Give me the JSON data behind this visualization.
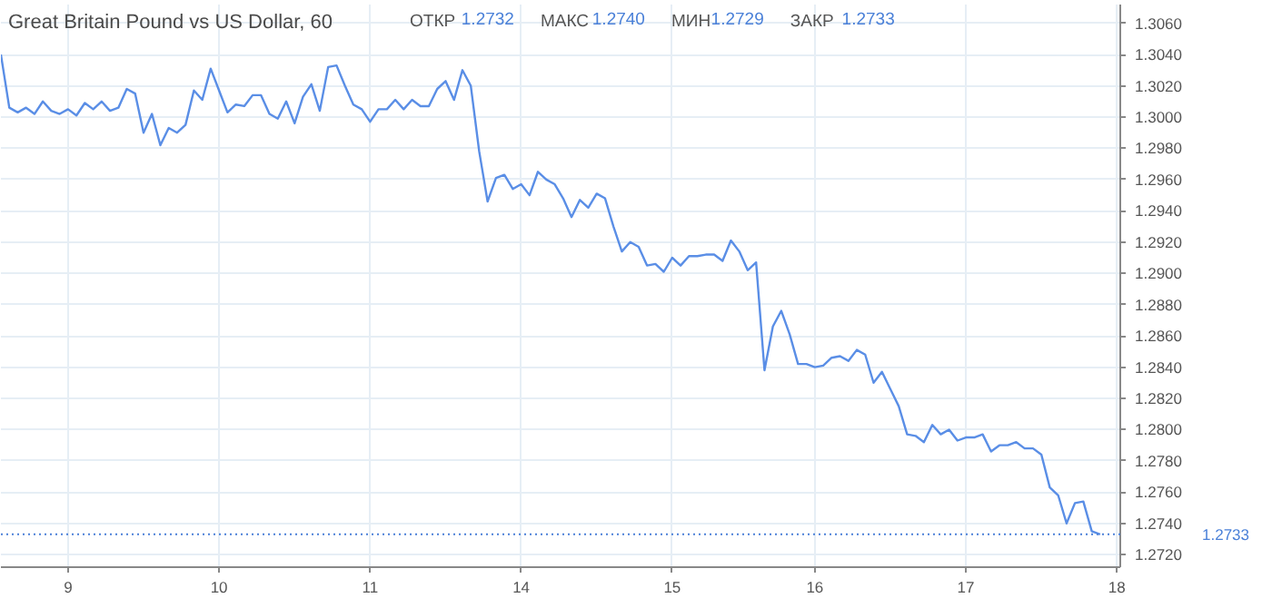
{
  "chart_data": {
    "type": "line",
    "title": "Great Britain Pound vs US Dollar, 60",
    "annotations": [
      "ОТКР",
      "1.2732",
      "МАКС",
      "1.2740",
      "МИН",
      "1.2729",
      "ЗАКР",
      "1.2733"
    ],
    "categories": [
      null,
      null,
      null,
      null,
      null,
      null,
      null,
      null,
      "9",
      null,
      null,
      null,
      null,
      null,
      null,
      null,
      null,
      null,
      null,
      null,
      null,
      null,
      null,
      null,
      null,
      null,
      "10",
      null,
      null,
      null,
      null,
      null,
      null,
      null,
      null,
      null,
      null,
      null,
      null,
      null,
      null,
      null,
      null,
      null,
      "11",
      null,
      null,
      null,
      null,
      null,
      null,
      null,
      null,
      null,
      null,
      null,
      null,
      null,
      null,
      null,
      null,
      null,
      "14",
      null,
      null,
      null,
      null,
      null,
      null,
      null,
      null,
      null,
      null,
      null,
      null,
      null,
      null,
      null,
      null,
      null,
      "15",
      null,
      null,
      null,
      null,
      null,
      null,
      null,
      null,
      null,
      null,
      null,
      null,
      null,
      null,
      null,
      null,
      "16",
      null,
      null,
      null,
      null,
      null,
      null,
      null,
      null,
      null,
      null,
      null,
      null,
      null,
      null,
      null,
      null,
      null,
      "17",
      null,
      null,
      null,
      null,
      null,
      null,
      null,
      null,
      null,
      null,
      null,
      null,
      null,
      null,
      null,
      null,
      null,
      "18"
    ],
    "series": [
      {
        "color": "#5a8ee6",
        "values": [
          1.304,
          1.3006,
          1.3003,
          1.3006,
          1.3002,
          1.301,
          1.3004,
          1.3002,
          1.3005,
          1.3001,
          1.3009,
          1.3005,
          1.301,
          1.3004,
          1.3006,
          1.3018,
          1.3015,
          1.299,
          1.3002,
          1.2982,
          1.2993,
          1.299,
          1.2995,
          1.3017,
          1.3011,
          1.3031,
          1.3017,
          1.3003,
          1.3008,
          1.3007,
          1.3014,
          1.3014,
          1.3002,
          1.2999,
          1.301,
          1.2996,
          1.3013,
          1.3021,
          1.3004,
          1.3032,
          1.3033,
          1.302,
          1.3008,
          1.3005,
          1.2997,
          1.3005,
          1.3005,
          1.3011,
          1.3005,
          1.3011,
          1.3007,
          1.3007,
          1.3018,
          1.3023,
          1.3011,
          1.303,
          1.302,
          1.2978,
          1.2946,
          1.2961,
          1.2963,
          1.2954,
          1.2957,
          1.295,
          1.2965,
          1.296,
          1.2957,
          1.2948,
          1.2936,
          1.2947,
          1.2942,
          1.2951,
          1.2948,
          1.293,
          1.2914,
          1.292,
          1.2917,
          1.2905,
          1.2906,
          1.2901,
          1.291,
          1.2905,
          1.2911,
          1.2911,
          1.2912,
          1.2912,
          1.2908,
          1.2921,
          1.2914,
          1.2902,
          1.2907,
          1.2838,
          1.2866,
          1.2876,
          1.2861,
          1.2842,
          1.2842,
          1.284,
          1.2841,
          1.2846,
          1.2847,
          1.2844,
          1.2851,
          1.2848,
          1.283,
          1.2837,
          1.2826,
          1.2815,
          1.2797,
          1.2796,
          1.2792,
          1.2803,
          1.2797,
          1.28,
          1.2793,
          1.2795,
          1.2795,
          1.2797,
          1.2786,
          1.279,
          1.279,
          1.2792,
          1.2788,
          1.2788,
          1.2784,
          1.2763,
          1.2758,
          1.274,
          1.2753,
          1.2754,
          1.2735,
          1.2733,
          null,
          null
        ]
      }
    ],
    "ylim": [
      1.2712,
      1.3072
    ],
    "yticks": [
      {
        "value": 1.272,
        "label": "1.2720"
      },
      {
        "value": 1.274,
        "label": "1.2740"
      },
      {
        "value": 1.276,
        "label": "1.2760"
      },
      {
        "value": 1.278,
        "label": "1.2780"
      },
      {
        "value": 1.28,
        "label": "1.2800"
      },
      {
        "value": 1.282,
        "label": "1.2820"
      },
      {
        "value": 1.284,
        "label": "1.2840"
      },
      {
        "value": 1.286,
        "label": "1.2860"
      },
      {
        "value": 1.288,
        "label": "1.2880"
      },
      {
        "value": 1.29,
        "label": "1.2900"
      },
      {
        "value": 1.292,
        "label": "1.2920"
      },
      {
        "value": 1.294,
        "label": "1.2940"
      },
      {
        "value": 1.296,
        "label": "1.2960"
      },
      {
        "value": 1.298,
        "label": "1.2980"
      },
      {
        "value": 1.3,
        "label": "1.3000"
      },
      {
        "value": 1.302,
        "label": "1.3020"
      },
      {
        "value": 1.304,
        "label": "1.3040"
      },
      {
        "value": 1.306,
        "label": "1.3060"
      }
    ],
    "ref_lines": [
      {
        "axis": "y",
        "value": 1.2733,
        "label": "1.2733",
        "color": "#4a80d8",
        "line_style": "dotted"
      }
    ],
    "grid": true,
    "marker": "none",
    "line_style": "solid"
  }
}
